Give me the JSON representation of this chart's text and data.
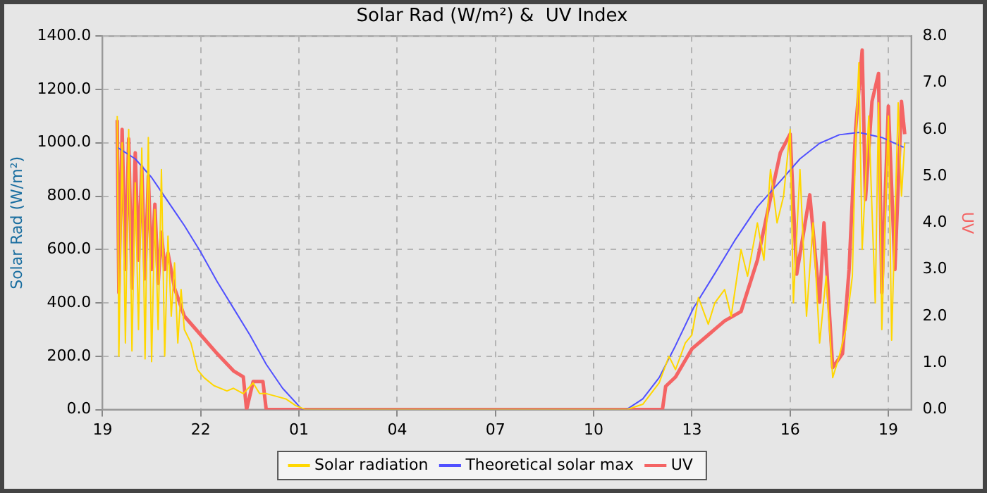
{
  "chart_data": {
    "type": "line",
    "title": "Solar Rad (W/m²) &  UV Index",
    "ylabel": "Solar Rad (W/m²)",
    "y2label": "UV",
    "xlim": [
      "--01-01T19:00",
      "--01-02T19:42"
    ],
    "xticks": [
      {
        "value": "--01-01T19:00",
        "label": "19"
      },
      {
        "value": "--01-01T22:00",
        "label": "22"
      },
      {
        "value": "--01-02T01:00",
        "label": "01"
      },
      {
        "value": "--01-02T04:00",
        "label": "04"
      },
      {
        "value": "--01-02T07:00",
        "label": "07"
      },
      {
        "value": "--01-02T10:00",
        "label": "10"
      },
      {
        "value": "--01-02T13:00",
        "label": "13"
      },
      {
        "value": "--01-02T16:00",
        "label": "16"
      },
      {
        "value": "--01-02T19:00",
        "label": "19"
      }
    ],
    "ylim": [
      0,
      1400
    ],
    "yticks": [
      {
        "value": 0,
        "label": "0.0"
      },
      {
        "value": 200,
        "label": "200.0"
      },
      {
        "value": 400,
        "label": "400.0"
      },
      {
        "value": 600,
        "label": "600.0"
      },
      {
        "value": 800,
        "label": "800.0"
      },
      {
        "value": 1000,
        "label": "1000.0"
      },
      {
        "value": 1200,
        "label": "1200.0"
      },
      {
        "value": 1400,
        "label": "1400.0"
      }
    ],
    "y2lim": [
      0,
      8
    ],
    "y2ticks": [
      {
        "value": 0,
        "label": "0.0"
      },
      {
        "value": 1,
        "label": "1.0"
      },
      {
        "value": 2,
        "label": "2.0"
      },
      {
        "value": 3,
        "label": "3.0"
      },
      {
        "value": 4,
        "label": "4.0"
      },
      {
        "value": 5,
        "label": "5.0"
      },
      {
        "value": 6,
        "label": "6.0"
      },
      {
        "value": 7,
        "label": "7.0"
      },
      {
        "value": 8,
        "label": "8.0"
      }
    ],
    "grid": true,
    "legend": "bottom",
    "marker": "none",
    "line_style": "solid",
    "series": [
      {
        "name": "Solar radiation",
        "color": "#ffd700",
        "x": [
          "--01-01T19:27",
          "--01-01T19:30",
          "--01-01T19:36",
          "--01-01T19:42",
          "--01-01T19:48",
          "--01-01T19:54",
          "--01-01T20:00",
          "--01-01T20:06",
          "--01-01T20:12",
          "--01-01T20:18",
          "--01-01T20:24",
          "--01-01T20:30",
          "--01-01T20:36",
          "--01-01T20:42",
          "--01-01T20:48",
          "--01-01T20:54",
          "--01-01T21:00",
          "--01-01T21:06",
          "--01-01T21:12",
          "--01-01T21:18",
          "--01-01T21:24",
          "--01-01T21:30",
          "--01-01T21:42",
          "--01-01T21:54",
          "--01-01T22:06",
          "--01-01T22:24",
          "--01-01T22:48",
          "--01-01T23:00",
          "--01-01T23:18",
          "--01-01T23:36",
          "--01-01T23:48",
          "--01-02T00:00",
          "--01-02T00:18",
          "--01-02T00:36",
          "--01-02T00:54",
          "--01-02T01:12",
          "--01-02T11:00",
          "--01-02T11:30",
          "--01-02T12:00",
          "--01-02T12:18",
          "--01-02T12:30",
          "--01-02T12:48",
          "--01-02T13:00",
          "--01-02T13:12",
          "--01-02T13:30",
          "--01-02T13:42",
          "--01-02T14:00",
          "--01-02T14:12",
          "--01-02T14:30",
          "--01-02T14:42",
          "--01-02T15:00",
          "--01-02T15:12",
          "--01-02T15:24",
          "--01-02T15:36",
          "--01-02T15:48",
          "--01-02T16:00",
          "--01-02T16:06",
          "--01-02T16:18",
          "--01-02T16:30",
          "--01-02T16:42",
          "--01-02T16:54",
          "--01-02T17:06",
          "--01-02T17:18",
          "--01-02T17:30",
          "--01-02T17:42",
          "--01-02T17:54",
          "--01-02T18:00",
          "--01-02T18:06",
          "--01-02T18:12",
          "--01-02T18:24",
          "--01-02T18:36",
          "--01-02T18:42",
          "--01-02T18:48",
          "--01-02T19:00",
          "--01-02T19:06",
          "--01-02T19:18",
          "--01-02T19:24",
          "--01-02T19:30"
        ],
        "values": [
          1100,
          200,
          1000,
          250,
          1050,
          220,
          850,
          300,
          980,
          190,
          1020,
          180,
          750,
          300,
          900,
          200,
          650,
          350,
          550,
          250,
          450,
          300,
          250,
          150,
          120,
          90,
          70,
          80,
          60,
          100,
          60,
          60,
          50,
          40,
          15,
          0,
          0,
          20,
          100,
          200,
          150,
          250,
          280,
          420,
          320,
          400,
          450,
          350,
          600,
          500,
          700,
          560,
          900,
          700,
          800,
          1050,
          400,
          900,
          350,
          700,
          250,
          500,
          120,
          200,
          300,
          500,
          1000,
          1300,
          600,
          1100,
          400,
          1150,
          300,
          1100,
          260,
          1150,
          800,
          1000
        ]
      },
      {
        "name": "Theoretical solar max",
        "color": "#5050ff",
        "x": [
          "--01-01T19:27",
          "--01-01T20:00",
          "--01-01T20:30",
          "--01-01T21:00",
          "--01-01T21:30",
          "--01-01T22:00",
          "--01-01T22:30",
          "--01-01T23:00",
          "--01-01T23:30",
          "--01-02T00:00",
          "--01-02T00:30",
          "--01-02T01:06",
          "--01-02T11:00",
          "--01-02T11:30",
          "--01-02T12:00",
          "--01-02T12:30",
          "--01-02T13:03",
          "--01-02T13:42",
          "--01-02T14:18",
          "--01-02T15:00",
          "--01-02T15:45",
          "--01-02T16:18",
          "--01-02T16:54",
          "--01-02T17:30",
          "--01-02T18:06",
          "--01-02T18:48",
          "--01-02T19:28"
        ],
        "values": [
          983,
          940,
          870,
          780,
          690,
          590,
          480,
          380,
          280,
          170,
          80,
          0,
          0,
          40,
          120,
          240,
          381,
          510,
          632,
          760,
          863,
          940,
          998,
          1030,
          1039,
          1020,
          983
        ]
      },
      {
        "name": "UV",
        "color": "#f46464",
        "axis": "y2",
        "x": [
          "--01-01T19:27",
          "--01-01T19:30",
          "--01-01T19:36",
          "--01-01T19:42",
          "--01-01T19:48",
          "--01-01T19:54",
          "--01-01T20:00",
          "--01-01T20:06",
          "--01-01T20:12",
          "--01-01T20:18",
          "--01-01T20:24",
          "--01-01T20:30",
          "--01-01T20:36",
          "--01-01T20:42",
          "--01-01T20:48",
          "--01-01T20:54",
          "--01-01T21:00",
          "--01-01T21:12",
          "--01-01T21:30",
          "--01-01T22:00",
          "--01-01T22:30",
          "--01-01T23:00",
          "--01-01T23:18",
          "--01-01T23:24",
          "--01-01T23:36",
          "--01-01T23:54",
          "--01-02T00:00",
          "--01-02T00:12",
          "--01-02T12:06",
          "--01-02T12:12",
          "--01-02T12:30",
          "--01-02T13:00",
          "--01-02T13:30",
          "--01-02T14:00",
          "--01-02T14:30",
          "--01-02T15:00",
          "--01-02T15:18",
          "--01-02T15:42",
          "--01-02T16:00",
          "--01-02T16:12",
          "--01-02T16:36",
          "--01-02T16:54",
          "--01-02T17:02",
          "--01-02T17:18",
          "--01-02T17:36",
          "--01-02T17:48",
          "--01-02T18:00",
          "--01-02T18:12",
          "--01-02T18:18",
          "--01-02T18:30",
          "--01-02T18:42",
          "--01-02T18:48",
          "--01-02T19:00",
          "--01-02T19:12",
          "--01-02T19:24",
          "--01-02T19:30"
        ],
        "values": [
          6.2,
          2.5,
          6.0,
          3.0,
          5.8,
          2.6,
          5.5,
          3.2,
          5.2,
          2.8,
          5.0,
          3.0,
          4.4,
          2.7,
          3.8,
          3.0,
          3.35,
          2.6,
          2.0,
          1.6,
          1.2,
          0.83,
          0.7,
          0,
          0.6,
          0.6,
          0,
          0,
          0,
          0.5,
          0.7,
          1.3,
          1.6,
          1.9,
          2.1,
          3.2,
          4.2,
          5.5,
          5.9,
          2.9,
          4.6,
          2.3,
          4.0,
          0.9,
          1.2,
          3.0,
          6.0,
          7.7,
          4.5,
          6.6,
          7.2,
          2.5,
          6.5,
          3.0,
          6.6,
          5.9
        ]
      }
    ]
  }
}
